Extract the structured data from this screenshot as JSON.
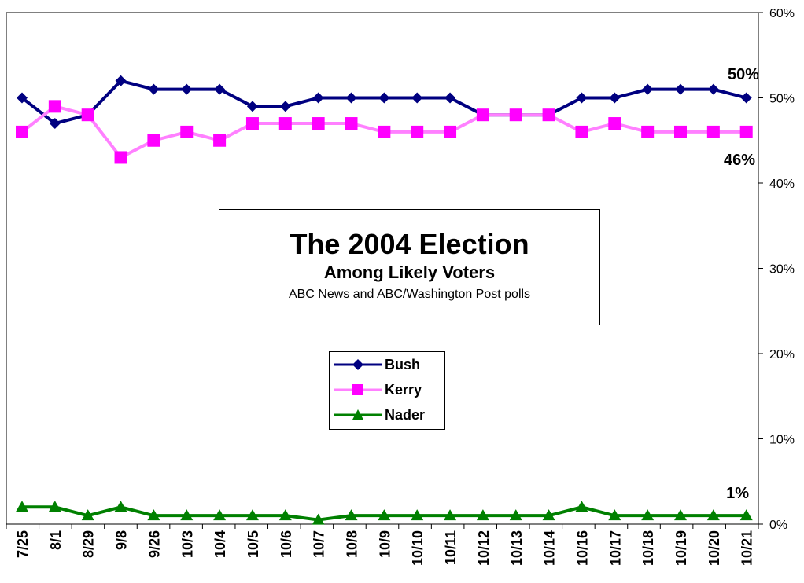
{
  "chart_data": {
    "type": "line",
    "title": "The 2004 Election",
    "subtitle": "Among Likely Voters",
    "source": "ABC News and ABC/Washington Post polls",
    "categories": [
      "7/25",
      "8/1",
      "8/29",
      "9/8",
      "9/26",
      "10/3",
      "10/4",
      "10/5",
      "10/6",
      "10/7",
      "10/8",
      "10/9",
      "10/10",
      "10/11",
      "10/12",
      "10/13",
      "10/14",
      "10/16",
      "10/17",
      "10/18",
      "10/19",
      "10/20",
      "10/21"
    ],
    "series": [
      {
        "name": "Bush",
        "color": "#000080",
        "marker": "diamond",
        "values": [
          50,
          47,
          48,
          52,
          51,
          51,
          51,
          49,
          49,
          50,
          50,
          50,
          50,
          50,
          48,
          48,
          48,
          50,
          50,
          51,
          51,
          51,
          50
        ]
      },
      {
        "name": "Kerry",
        "color": "#ff80ff",
        "marker": "square",
        "values": [
          46,
          49,
          48,
          43,
          45,
          46,
          45,
          47,
          47,
          47,
          47,
          46,
          46,
          46,
          48,
          48,
          48,
          46,
          47,
          46,
          46,
          46,
          46
        ]
      },
      {
        "name": "Nader",
        "color": "#008000",
        "marker": "triangle",
        "values": [
          2,
          2,
          1,
          2,
          1,
          1,
          1,
          1,
          1,
          0.5,
          1,
          1,
          1,
          1,
          1,
          1,
          1,
          2,
          1,
          1,
          1,
          1,
          1
        ]
      }
    ],
    "y_axis": {
      "position": "right",
      "ylim": [
        0,
        60
      ],
      "ticks": [
        0,
        10,
        20,
        30,
        40,
        50,
        60
      ],
      "tick_labels": [
        "0%",
        "10%",
        "20%",
        "30%",
        "40%",
        "50%",
        "60%"
      ]
    },
    "grid": false,
    "legend": "center",
    "annotations": [
      {
        "text": "50%",
        "series": "Bush",
        "at": "end"
      },
      {
        "text": "46%",
        "series": "Kerry",
        "at": "end"
      },
      {
        "text": "1%",
        "series": "Nader",
        "at": "end"
      }
    ]
  }
}
